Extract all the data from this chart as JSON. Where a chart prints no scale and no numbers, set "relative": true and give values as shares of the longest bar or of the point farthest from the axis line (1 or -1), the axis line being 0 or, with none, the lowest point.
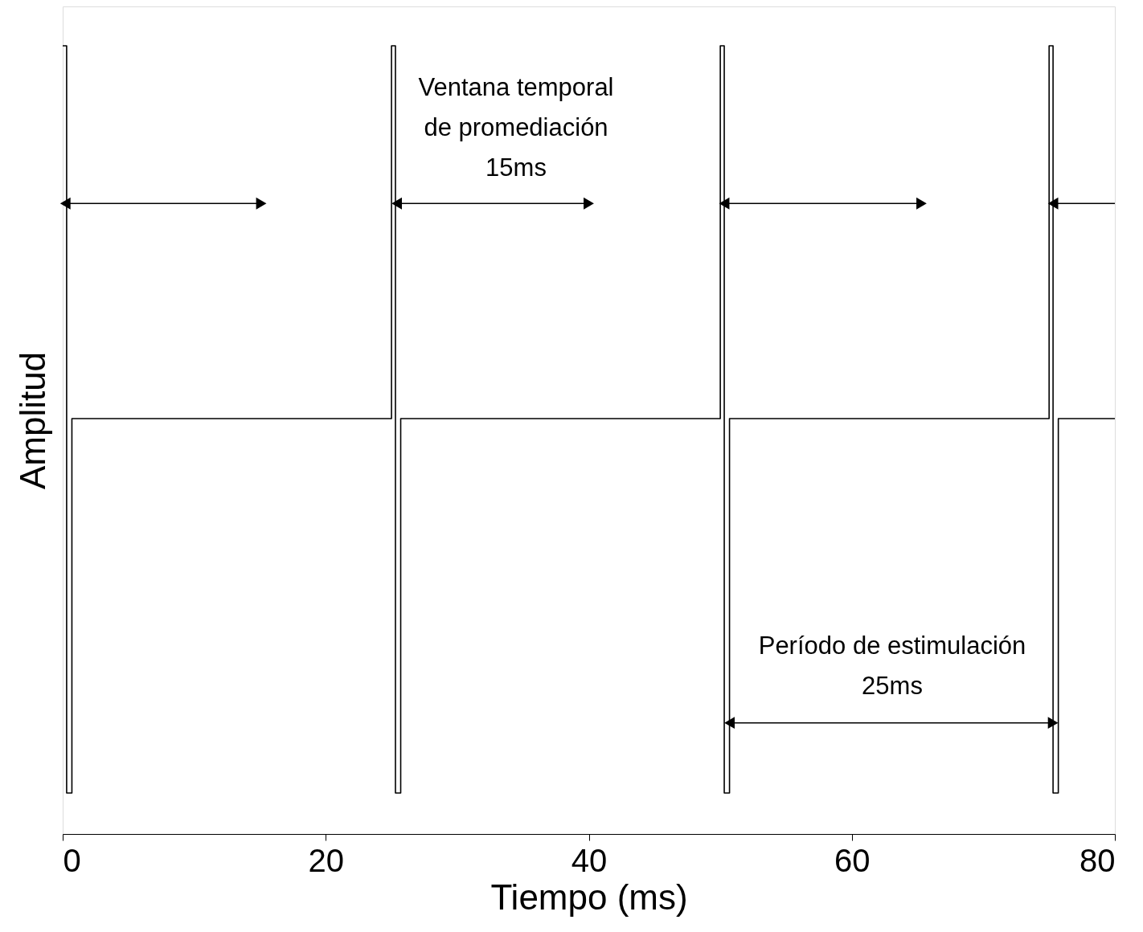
{
  "chart_data": {
    "type": "line",
    "relative": true,
    "xlabel": "Tiempo (ms)",
    "ylabel": "Amplitud",
    "xlim": [
      0,
      80
    ],
    "xticks": [
      0,
      20,
      40,
      60,
      80
    ],
    "grid": false,
    "series": [
      {
        "color": "#000000",
        "x": [
          0,
          0.3,
          0.3,
          0.7,
          0.7,
          25,
          25,
          25.3,
          25.3,
          25.7,
          25.7,
          50,
          50,
          50.3,
          50.3,
          50.7,
          50.7,
          75,
          75,
          75.3,
          75.3,
          75.7,
          75.7,
          80
        ],
        "values": [
          1,
          1,
          0.052,
          0.052,
          0.527,
          0.527,
          1,
          1,
          0.052,
          0.052,
          0.527,
          0.527,
          1,
          1,
          0.052,
          0.052,
          0.527,
          0.527,
          1,
          1,
          0.052,
          0.052,
          0.527,
          0.527
        ]
      },
      {
        "marker": "triangle",
        "color": "#000000",
        "x": [
          0.2,
          15.1
        ],
        "values": [
          0.8,
          0.8
        ]
      },
      {
        "marker": "triangle",
        "color": "#000000",
        "x": [
          25.4,
          40
        ],
        "values": [
          0.8,
          0.8
        ]
      },
      {
        "marker": "triangle",
        "color": "#000000",
        "x": [
          50.3,
          65.3
        ],
        "values": [
          0.8,
          0.8
        ]
      },
      {
        "marker": "triangle",
        "color": "#000000",
        "x": [
          75.3,
          80
        ],
        "values": [
          0.8,
          0.8
        ]
      },
      {
        "marker": "triangle",
        "color": "#000000",
        "x": [
          50.7,
          75.3
        ],
        "values": [
          0.141,
          0.141
        ]
      }
    ],
    "annotations": [
      "Ventana temporal\nde promediación\n15ms",
      "Período de estimulación\n25ms"
    ]
  }
}
